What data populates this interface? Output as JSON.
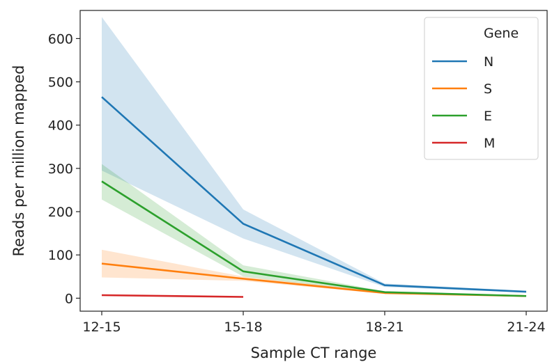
{
  "chart_data": {
    "type": "line",
    "categories": [
      "12-15",
      "15-18",
      "18-21",
      "21-24"
    ],
    "xlabel": "Sample CT range",
    "ylabel": "Reads per million mapped",
    "ylim": [
      -30,
      665
    ],
    "yticks": [
      0,
      100,
      200,
      300,
      400,
      500,
      600
    ],
    "grid": false,
    "legend": {
      "title": "Gene",
      "placement": "top-right"
    },
    "series": [
      {
        "name": "N",
        "color": "#1f77b4",
        "values": [
          465,
          172,
          30,
          15
        ],
        "lower": [
          295,
          138,
          26,
          13
        ],
        "upper": [
          650,
          205,
          34,
          17
        ]
      },
      {
        "name": "S",
        "color": "#ff7f0e",
        "values": [
          80,
          45,
          12,
          5
        ],
        "lower": [
          48,
          40,
          10,
          4
        ],
        "upper": [
          112,
          50,
          14,
          6
        ]
      },
      {
        "name": "E",
        "color": "#2ca02c",
        "values": [
          270,
          62,
          14,
          5
        ],
        "lower": [
          228,
          50,
          12,
          4
        ],
        "upper": [
          310,
          76,
          16,
          6
        ]
      },
      {
        "name": "M",
        "color": "#d62728",
        "values": [
          7,
          3,
          null,
          null
        ]
      }
    ]
  }
}
